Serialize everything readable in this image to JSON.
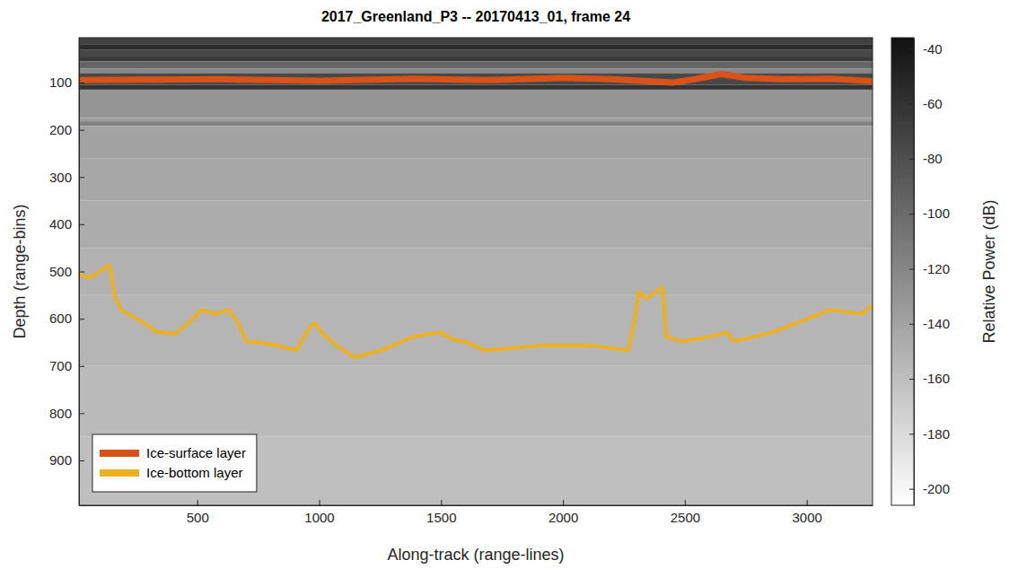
{
  "chart_data": {
    "type": "heatmap",
    "title": "2017_Greenland_P3 -- 20170413_01, frame 24",
    "x_label": "Along-track (range-lines)",
    "y_label": "Depth (range-bins)",
    "xlim": [
      15,
      3270
    ],
    "ylim": [
      5,
      995
    ],
    "xticks": [
      500,
      1000,
      1500,
      2000,
      2500,
      3000
    ],
    "yticks": [
      100,
      200,
      300,
      400,
      500,
      600,
      700,
      800,
      900
    ],
    "legend": "lower left",
    "heatmap": {
      "depth_edges": [
        5,
        20,
        30,
        45,
        55,
        70,
        80,
        105,
        115,
        175,
        182,
        192,
        260,
        350,
        450,
        550,
        700,
        850,
        995
      ],
      "power": [
        -70,
        -55,
        -75,
        -65,
        -95,
        -120,
        -75,
        -60,
        -130,
        -135,
        -115,
        -140,
        -143,
        -147,
        -150,
        -153,
        -157,
        -160
      ]
    },
    "colorbar": {
      "label": "Relative Power (dB)",
      "range": [
        -206,
        -36
      ],
      "ticks": [
        -40,
        -60,
        -80,
        -100,
        -120,
        -140,
        -160,
        -180,
        -200
      ]
    },
    "series": [
      {
        "name": "Ice-surface layer",
        "color": "#d95319",
        "x": [
          15,
          300,
          600,
          1000,
          1400,
          1700,
          2000,
          2200,
          2450,
          2550,
          2650,
          2750,
          2900,
          3100,
          3270
        ],
        "values": [
          95,
          94,
          93,
          96,
          92,
          95,
          90,
          93,
          100,
          92,
          82,
          90,
          93,
          92,
          97
        ]
      },
      {
        "name": "Ice-bottom layer",
        "color": "#edb120",
        "x": [
          15,
          59,
          114,
          140,
          162,
          188,
          280,
          335,
          409,
          464,
          519,
          575,
          630,
          667,
          703,
          796,
          906,
          961,
          980,
          1016,
          1072,
          1145,
          1256,
          1385,
          1495,
          1550,
          1598,
          1679,
          1900,
          2121,
          2268,
          2298,
          2312,
          2342,
          2408,
          2423,
          2489,
          2600,
          2673,
          2703,
          2858,
          3005,
          3097,
          3226,
          3270
        ],
        "values": [
          505,
          514,
          495,
          486,
          552,
          581,
          609,
          628,
          632,
          609,
          581,
          590,
          581,
          609,
          648,
          653,
          667,
          619,
          609,
          632,
          657,
          682,
          667,
          638,
          629,
          644,
          648,
          667,
          657,
          657,
          667,
          591,
          543,
          557,
          534,
          638,
          648,
          638,
          629,
          648,
          629,
          600,
          581,
          590,
          571
        ]
      }
    ]
  }
}
